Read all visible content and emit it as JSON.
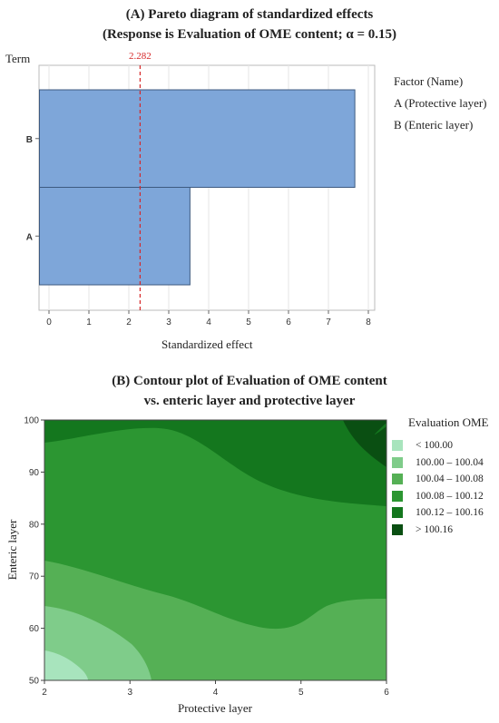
{
  "pareto": {
    "title_line1": "(A) Pareto diagram of standardized effects",
    "title_line2": "(Response is Evaluation of OME content; α = 0.15)",
    "y_axis_label": "Term",
    "x_axis_label": "Standardized effect",
    "factor_header": "Factor (Name)",
    "factors": [
      "A (Protective layer)",
      "B (Enteric layer)"
    ],
    "bar_color": "#7ea6d9",
    "ref_color": "#d62728"
  },
  "contour": {
    "title_line1": "(B) Contour plot of Evaluation of OME content",
    "title_line2": "vs. enteric layer and protective layer",
    "x_axis_label": "Protective layer",
    "y_axis_label": "Enteric layer",
    "legend_title": "Evaluation OME",
    "legend": [
      {
        "label": "< 100.00",
        "color": "#a8e4bd"
      },
      {
        "label": "100.00 – 100.04",
        "color": "#7fcc8a"
      },
      {
        "label": "100.04 – 100.08",
        "color": "#55b055"
      },
      {
        "label": "100.08 – 100.12",
        "color": "#2c9632"
      },
      {
        "label": "100.12 – 100.16",
        "color": "#14771e"
      },
      {
        "label": "> 100.16",
        "color": "#0a4f12"
      }
    ]
  },
  "chart_data": [
    {
      "type": "bar",
      "orientation": "horizontal",
      "categories": [
        "B",
        "A"
      ],
      "values": [
        7.65,
        3.52
      ],
      "reference_line": {
        "value": 2.282,
        "label": "2.282"
      },
      "xlim": [
        0,
        8
      ],
      "x_ticks": [
        "0",
        "1",
        "2",
        "3",
        "4",
        "5",
        "6",
        "7",
        "8"
      ],
      "xlabel": "Standardized effect",
      "ylabel": "Term",
      "grid": true
    },
    {
      "type": "heatmap",
      "subtype": "contour",
      "xlim": [
        2,
        6
      ],
      "ylim": [
        50,
        100
      ],
      "x_ticks": [
        "2",
        "3",
        "4",
        "5",
        "6"
      ],
      "y_ticks": [
        "50",
        "60",
        "70",
        "80",
        "90",
        "100"
      ],
      "xlabel": "Protective layer",
      "ylabel": "Enteric layer",
      "levels": [
        "< 100.00",
        "100.00 – 100.04",
        "100.04 – 100.08",
        "100.08 – 100.12",
        "100.12 – 100.16",
        "> 100.16"
      ]
    }
  ]
}
